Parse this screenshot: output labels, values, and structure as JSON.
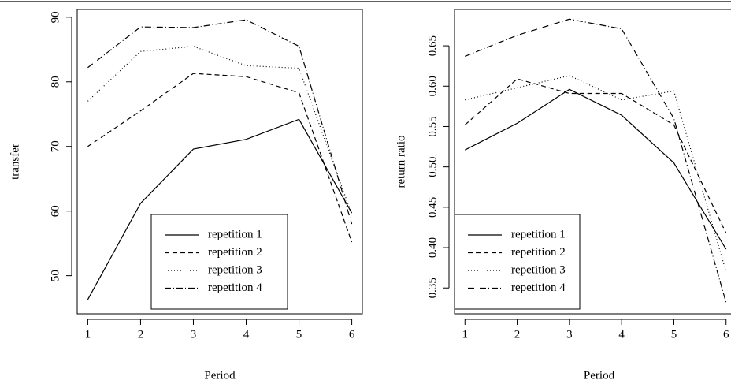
{
  "chart_data": [
    {
      "type": "line",
      "xlabel": "Period",
      "ylabel": "transfer",
      "x": [
        1,
        2,
        3,
        4,
        5,
        6
      ],
      "xlim": [
        0.8,
        6.2
      ],
      "xticks": [
        1,
        2,
        3,
        4,
        5,
        6
      ],
      "ylim": [
        44.1,
        91.2
      ],
      "yticks": [
        50,
        60,
        70,
        80,
        90
      ],
      "legend": "bottom",
      "series": [
        {
          "name": "repetition 1",
          "color": "#000000",
          "linestyle": "solid",
          "values": [
            46.3,
            61.2,
            69.6,
            71.1,
            74.2,
            59.7
          ]
        },
        {
          "name": "repetition 2",
          "color": "#000000",
          "linestyle": "dashed",
          "values": [
            70,
            75.5,
            81.3,
            80.8,
            78.3,
            55.2
          ]
        },
        {
          "name": "repetition 3",
          "color": "#000000",
          "linestyle": "dotted",
          "values": [
            77,
            84.7,
            85.5,
            82.5,
            82.1,
            59.5
          ]
        },
        {
          "name": "repetition 4",
          "color": "#000000",
          "linestyle": "dashdot",
          "values": [
            82.2,
            88.5,
            88.4,
            89.6,
            85.5,
            58
          ]
        }
      ]
    },
    {
      "type": "line",
      "xlabel": "Period",
      "ylabel": "return ratio",
      "x": [
        1,
        2,
        3,
        4,
        5,
        6
      ],
      "xlim": [
        0.8,
        6.2
      ],
      "xticks": [
        1,
        2,
        3,
        4,
        5,
        6
      ],
      "ylim": [
        0.318,
        0.695
      ],
      "yticks": [
        0.35,
        {
          "value": 0.4,
          "label": "0.40"
        },
        0.45,
        {
          "value": 0.5,
          "label": "0.50"
        },
        0.55,
        {
          "value": 0.6,
          "label": "0.60"
        },
        0.65
      ],
      "legend": "bottomleft",
      "series": [
        {
          "name": "repetition 1",
          "color": "#000000",
          "linestyle": "solid",
          "values": [
            0.521,
            0.554,
            0.596,
            0.564,
            0.505,
            0.398
          ]
        },
        {
          "name": "repetition 2",
          "color": "#000000",
          "linestyle": "dashed",
          "values": [
            0.552,
            0.609,
            0.591,
            0.591,
            0.552,
            0.418
          ]
        },
        {
          "name": "repetition 3",
          "color": "#000000",
          "linestyle": "dotted",
          "values": [
            0.583,
            0.598,
            0.613,
            0.583,
            0.594,
            0.37
          ]
        },
        {
          "name": "repetition 4",
          "color": "#000000",
          "linestyle": "dashdot",
          "values": [
            0.637,
            0.663,
            0.683,
            0.671,
            0.56,
            0.332
          ]
        }
      ]
    }
  ]
}
